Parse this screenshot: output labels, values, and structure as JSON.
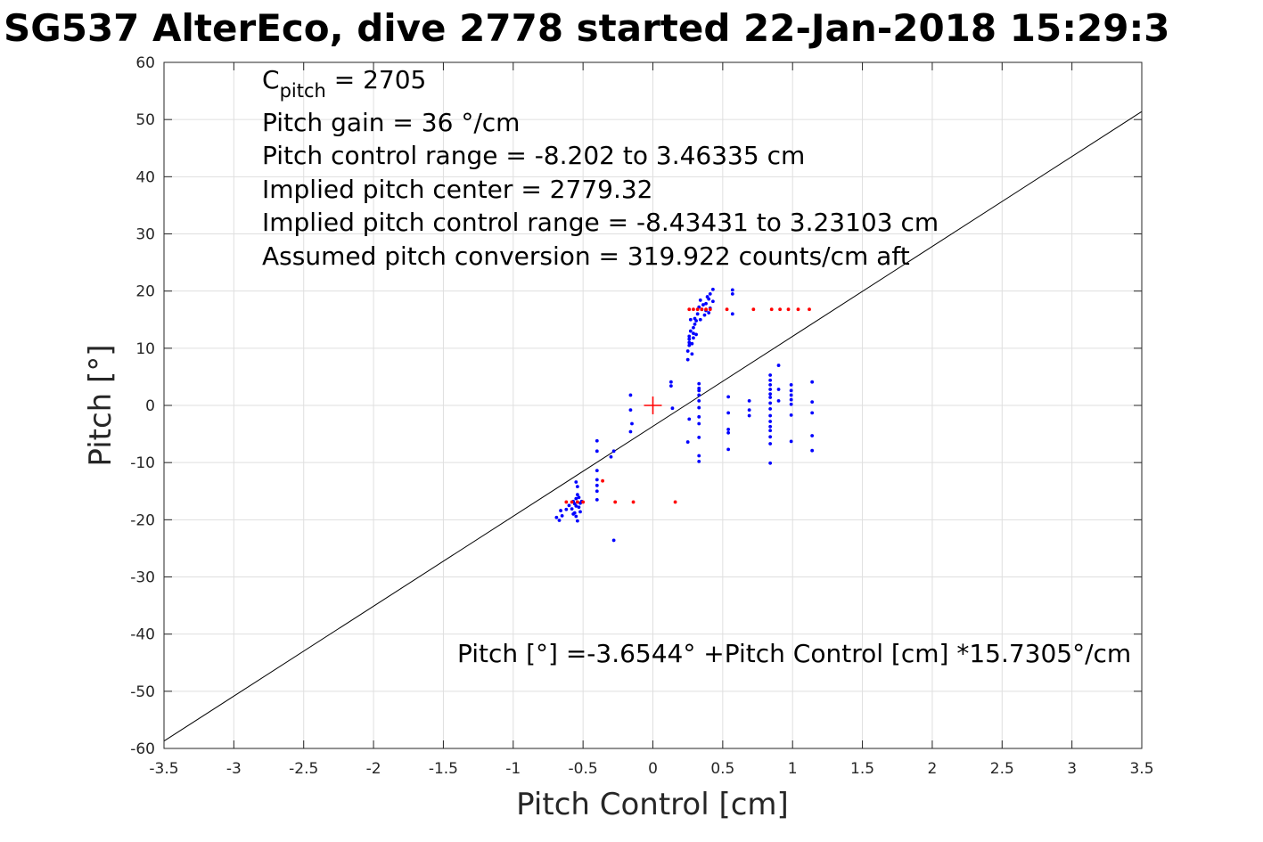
{
  "chart_data": {
    "type": "scatter",
    "title": "SG537 AlterEco, dive 2778 started 22-Jan-2018 15:29:3",
    "xlabel": "Pitch Control [cm]",
    "ylabel": "Pitch [°]",
    "xlim": [
      -3.5,
      3.5
    ],
    "ylim": [
      -60,
      60
    ],
    "grid": true,
    "xticks": [
      -3.5,
      -3,
      -2.5,
      -2,
      -1.5,
      -1,
      -0.5,
      0,
      0.5,
      1,
      1.5,
      2,
      2.5,
      3,
      3.5
    ],
    "xtick_labels": [
      "-3.5",
      "-3",
      "-2.5",
      "-2",
      "-1.5",
      "-1",
      "-0.5",
      "0",
      "0.5",
      "1",
      "1.5",
      "2",
      "2.5",
      "3",
      "3.5"
    ],
    "yticks": [
      -60,
      -50,
      -40,
      -30,
      -20,
      -10,
      0,
      10,
      20,
      30,
      40,
      50,
      60
    ],
    "ytick_labels": [
      "-60",
      "-50",
      "-40",
      "-30",
      "-20",
      "-10",
      "0",
      "10",
      "20",
      "30",
      "40",
      "50",
      "60"
    ],
    "annotations": {
      "c_pitch": {
        "main": "C",
        "sub": "pitch",
        "rest": " = 2705"
      },
      "lines": [
        "Pitch gain = 36 °/cm",
        "Pitch control range = -8.202 to 3.46335 cm",
        "Implied pitch center = 2779.32",
        "Implied pitch control range = -8.43431 to 3.23103 cm",
        "Assumed pitch conversion = 319.922 counts/cm aft"
      ],
      "fit_equation": "Pitch [°] =-3.6544° +Pitch Control [cm] *15.7305°/cm"
    },
    "fit_line": {
      "intercept": -3.6544,
      "slope": 15.7305,
      "color": "#000000"
    },
    "center_marker": {
      "x": 0,
      "y": 0,
      "color": "#ff0000"
    },
    "series": [
      {
        "color": "#0000ff",
        "points": [
          [
            -0.69,
            -19.6
          ],
          [
            -0.67,
            -20.1
          ],
          [
            -0.66,
            -18.4
          ],
          [
            -0.65,
            -19.3
          ],
          [
            -0.62,
            -18.2
          ],
          [
            -0.6,
            -17.5
          ],
          [
            -0.58,
            -18.1
          ],
          [
            -0.57,
            -16.8
          ],
          [
            -0.56,
            -17.2
          ],
          [
            -0.56,
            -18.8
          ],
          [
            -0.55,
            -16.3
          ],
          [
            -0.55,
            -19.4
          ],
          [
            -0.54,
            -20.2
          ],
          [
            -0.54,
            -15.6
          ],
          [
            -0.54,
            -14.2
          ],
          [
            -0.55,
            -13.4
          ],
          [
            -0.53,
            -17.8
          ],
          [
            -0.53,
            -16.1
          ],
          [
            -0.52,
            -17.1
          ],
          [
            -0.52,
            -18.6
          ],
          [
            -0.51,
            -16.8
          ],
          [
            -0.55,
            -17.6
          ],
          [
            -0.57,
            -19.0
          ],
          [
            -0.4,
            -6.2
          ],
          [
            -0.4,
            -8.0
          ],
          [
            -0.4,
            -11.4
          ],
          [
            -0.4,
            -13.0
          ],
          [
            -0.4,
            -14.0
          ],
          [
            -0.4,
            -15.0
          ],
          [
            -0.4,
            -16.5
          ],
          [
            -0.3,
            -9.0
          ],
          [
            -0.28,
            -8.0
          ],
          [
            -0.28,
            -23.6
          ],
          [
            -0.16,
            1.8
          ],
          [
            -0.16,
            -0.8
          ],
          [
            -0.16,
            -4.6
          ],
          [
            -0.15,
            -3.2
          ],
          [
            0.13,
            4.1
          ],
          [
            0.13,
            3.4
          ],
          [
            0.14,
            -0.5
          ],
          [
            0.25,
            8.0
          ],
          [
            0.25,
            9.5
          ],
          [
            0.26,
            10.5
          ],
          [
            0.26,
            11.0
          ],
          [
            0.26,
            11.6
          ],
          [
            0.26,
            12.1
          ],
          [
            0.27,
            13.0
          ],
          [
            0.27,
            15.0
          ],
          [
            0.28,
            9.0
          ],
          [
            0.28,
            10.8
          ],
          [
            0.29,
            11.8
          ],
          [
            0.29,
            12.6
          ],
          [
            0.29,
            13.6
          ],
          [
            0.3,
            14.2
          ],
          [
            0.3,
            15.2
          ],
          [
            0.31,
            12.4
          ],
          [
            0.31,
            14.8
          ],
          [
            0.32,
            16.0
          ],
          [
            0.33,
            17.2
          ],
          [
            0.34,
            18.4
          ],
          [
            0.34,
            15.0
          ],
          [
            0.35,
            16.8
          ],
          [
            0.36,
            17.6
          ],
          [
            0.37,
            15.8
          ],
          [
            0.38,
            16.6
          ],
          [
            0.38,
            17.8
          ],
          [
            0.39,
            19.0
          ],
          [
            0.4,
            16.2
          ],
          [
            0.4,
            18.6
          ],
          [
            0.41,
            17.0
          ],
          [
            0.41,
            19.5
          ],
          [
            0.43,
            20.3
          ],
          [
            0.43,
            18.2
          ],
          [
            0.57,
            20.2
          ],
          [
            0.57,
            19.5
          ],
          [
            0.57,
            16.0
          ],
          [
            0.25,
            -6.4
          ],
          [
            0.26,
            -2.4
          ],
          [
            0.33,
            3.8
          ],
          [
            0.33,
            3.0
          ],
          [
            0.33,
            2.6
          ],
          [
            0.33,
            1.8
          ],
          [
            0.33,
            0.8
          ],
          [
            0.33,
            -0.4
          ],
          [
            0.33,
            -2.0
          ],
          [
            0.33,
            -3.2
          ],
          [
            0.33,
            -5.6
          ],
          [
            0.33,
            -8.8
          ],
          [
            0.33,
            -9.8
          ],
          [
            0.54,
            1.5
          ],
          [
            0.54,
            -1.3
          ],
          [
            0.54,
            -4.2
          ],
          [
            0.54,
            -4.8
          ],
          [
            0.54,
            -7.7
          ],
          [
            0.69,
            0.8
          ],
          [
            0.69,
            -0.8
          ],
          [
            0.69,
            -1.8
          ],
          [
            0.84,
            5.3
          ],
          [
            0.84,
            4.4
          ],
          [
            0.84,
            3.6
          ],
          [
            0.84,
            2.8
          ],
          [
            0.84,
            2.0
          ],
          [
            0.84,
            1.4
          ],
          [
            0.84,
            0.4
          ],
          [
            0.84,
            -0.6
          ],
          [
            0.84,
            -1.8
          ],
          [
            0.84,
            -2.8
          ],
          [
            0.84,
            -3.7
          ],
          [
            0.84,
            -4.4
          ],
          [
            0.84,
            -5.5
          ],
          [
            0.84,
            -6.7
          ],
          [
            0.84,
            -10.1
          ],
          [
            0.9,
            7.0
          ],
          [
            0.9,
            2.8
          ],
          [
            0.9,
            0.8
          ],
          [
            0.99,
            3.6
          ],
          [
            0.99,
            2.6
          ],
          [
            0.99,
            1.8
          ],
          [
            0.99,
            1.0
          ],
          [
            0.99,
            0.2
          ],
          [
            0.99,
            -1.7
          ],
          [
            0.99,
            -6.3
          ],
          [
            1.14,
            4.1
          ],
          [
            1.14,
            0.6
          ],
          [
            1.14,
            -1.3
          ],
          [
            1.14,
            -5.3
          ],
          [
            1.14,
            -7.9
          ]
        ]
      },
      {
        "color": "#ff0000",
        "points": [
          [
            -0.62,
            -16.9
          ],
          [
            -0.58,
            -16.9
          ],
          [
            -0.54,
            -16.9
          ],
          [
            -0.5,
            -16.9
          ],
          [
            -0.36,
            -13.2
          ],
          [
            -0.27,
            -16.9
          ],
          [
            -0.14,
            -16.9
          ],
          [
            0.16,
            -16.9
          ],
          [
            0.26,
            16.8
          ],
          [
            0.29,
            16.8
          ],
          [
            0.32,
            16.8
          ],
          [
            0.35,
            16.8
          ],
          [
            0.38,
            16.8
          ],
          [
            0.41,
            16.8
          ],
          [
            0.53,
            16.8
          ],
          [
            0.72,
            16.8
          ],
          [
            0.85,
            16.8
          ],
          [
            0.91,
            16.8
          ],
          [
            0.97,
            16.8
          ],
          [
            1.04,
            16.8
          ],
          [
            1.12,
            16.8
          ]
        ]
      }
    ]
  }
}
